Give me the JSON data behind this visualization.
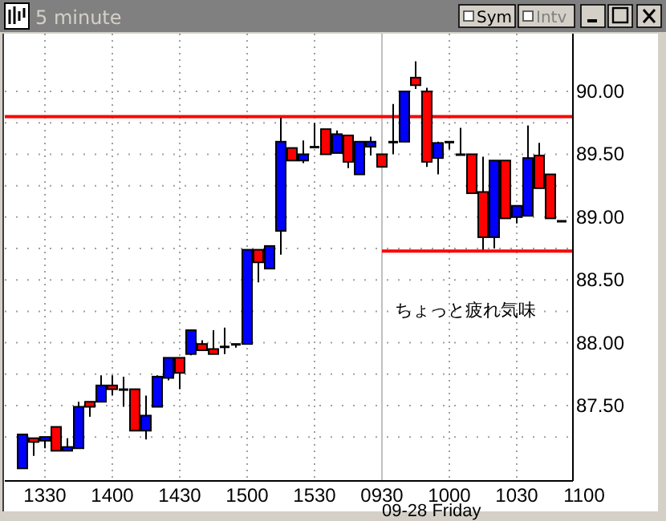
{
  "chart_data": {
    "type": "candlestick",
    "title": "5 minute",
    "categories": [
      null,
      null,
      "1330",
      null,
      null,
      null,
      null,
      null,
      "1400",
      null,
      null,
      null,
      null,
      null,
      "1430",
      null,
      null,
      null,
      null,
      null,
      "1500",
      null,
      null,
      null,
      null,
      null,
      "1530",
      null,
      null,
      null,
      null,
      null,
      "0930",
      null,
      null,
      null,
      null,
      null,
      "1000",
      null,
      null,
      null,
      null,
      null,
      "1030",
      null,
      null,
      null,
      null,
      null,
      "1100"
    ],
    "ohlc": [
      [
        87.0,
        87.27,
        87.0,
        87.27
      ],
      [
        87.24,
        87.24,
        87.1,
        87.21
      ],
      [
        87.22,
        87.25,
        87.16,
        87.25
      ],
      [
        87.33,
        87.33,
        87.14,
        87.14
      ],
      [
        87.14,
        87.24,
        87.14,
        87.17
      ],
      [
        87.16,
        87.53,
        87.16,
        87.49
      ],
      [
        87.53,
        87.53,
        87.41,
        87.49
      ],
      [
        87.53,
        87.74,
        87.53,
        87.66
      ],
      [
        87.66,
        87.74,
        87.58,
        87.63
      ],
      [
        87.63,
        87.73,
        87.49,
        87.63
      ],
      [
        87.63,
        87.63,
        87.3,
        87.3
      ],
      [
        87.3,
        87.58,
        87.23,
        87.42
      ],
      [
        87.49,
        87.74,
        87.49,
        87.73
      ],
      [
        87.72,
        87.88,
        87.7,
        87.88
      ],
      [
        87.88,
        87.88,
        87.63,
        87.76
      ],
      [
        87.91,
        88.1,
        87.9,
        88.1
      ],
      [
        87.99,
        88.02,
        87.94,
        87.94
      ],
      [
        87.95,
        88.1,
        87.91,
        87.91
      ],
      [
        87.97,
        88.12,
        87.91,
        87.97
      ],
      [
        87.99,
        87.99,
        87.96,
        87.99
      ],
      [
        87.99,
        88.74,
        87.99,
        88.74
      ],
      [
        88.74,
        88.74,
        88.48,
        88.64
      ],
      [
        88.59,
        88.77,
        88.59,
        88.77
      ],
      [
        88.89,
        89.79,
        88.7,
        89.6
      ],
      [
        89.55,
        89.55,
        89.45,
        89.45
      ],
      [
        89.45,
        89.61,
        89.43,
        89.5
      ],
      [
        89.56,
        89.75,
        89.56,
        89.56
      ],
      [
        89.7,
        89.7,
        89.5,
        89.5
      ],
      [
        89.51,
        89.69,
        89.51,
        89.66
      ],
      [
        89.65,
        89.65,
        89.39,
        89.44
      ],
      [
        89.34,
        89.6,
        89.34,
        89.6
      ],
      [
        89.56,
        89.64,
        89.49,
        89.6
      ],
      [
        89.5,
        89.5,
        89.4,
        89.4
      ],
      [
        89.6,
        89.9,
        89.5,
        89.6
      ],
      [
        89.6,
        90.0,
        89.6,
        90.0
      ],
      [
        90.11,
        90.24,
        90.02,
        90.05
      ],
      [
        90.0,
        90.03,
        89.4,
        89.44
      ],
      [
        89.47,
        89.6,
        89.34,
        89.59
      ],
      [
        89.6,
        89.6,
        89.54,
        89.6
      ],
      [
        89.5,
        89.71,
        89.5,
        89.5
      ],
      [
        89.5,
        89.5,
        89.19,
        89.19
      ],
      [
        89.2,
        89.48,
        88.74,
        88.84
      ],
      [
        88.84,
        89.45,
        88.75,
        89.45
      ],
      [
        89.45,
        89.45,
        88.99,
        88.99
      ],
      [
        89.0,
        89.09,
        88.95,
        89.09
      ],
      [
        89.01,
        89.73,
        89.01,
        89.47
      ],
      [
        89.49,
        89.59,
        89.23,
        89.23
      ],
      [
        89.34,
        89.34,
        88.99,
        88.99
      ],
      [
        88.97,
        88.97,
        88.97,
        88.97
      ],
      null,
      null
    ],
    "ylim": [
      86.9,
      90.46
    ],
    "yticks": [
      {
        "value": 87.25,
        "label": null
      },
      {
        "value": 87.5,
        "label": "87.50"
      },
      {
        "value": 87.75,
        "label": null
      },
      {
        "value": 88,
        "label": "88.00"
      },
      {
        "value": 88.25,
        "label": null
      },
      {
        "value": 88.5,
        "label": "88.50"
      },
      {
        "value": 88.75,
        "label": null
      },
      {
        "value": 89,
        "label": "89.00"
      },
      {
        "value": 89.25,
        "label": null
      },
      {
        "value": 89.5,
        "label": "89.50"
      },
      {
        "value": 89.75,
        "label": null
      },
      {
        "value": 90,
        "label": "90.00"
      }
    ],
    "grid": true,
    "ref_lines": [
      {
        "axis": "x",
        "value": "0930",
        "color": "#c0c0c0"
      },
      {
        "axis": "y",
        "value": 89.8,
        "color": "#ff0000"
      },
      {
        "axis": "y",
        "value": 88.73,
        "color": "#ff0000"
      }
    ],
    "annotations": [
      "ちょっと疲れ気味",
      "09-28 Friday",
      "Sym",
      "Intv"
    ]
  }
}
